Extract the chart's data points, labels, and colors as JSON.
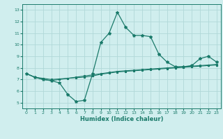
{
  "x": [
    0,
    1,
    2,
    3,
    4,
    5,
    6,
    7,
    8,
    9,
    10,
    11,
    12,
    13,
    14,
    15,
    16,
    17,
    18,
    19,
    20,
    21,
    22,
    23
  ],
  "line1": [
    7.5,
    7.2,
    7.0,
    6.9,
    6.7,
    5.7,
    5.1,
    5.2,
    7.5,
    10.2,
    11.0,
    12.8,
    11.5,
    10.8,
    10.8,
    10.7,
    9.2,
    8.5,
    8.1,
    8.1,
    8.2,
    8.8,
    9.0,
    8.5
  ],
  "line2": [
    7.5,
    7.2,
    7.0,
    6.9,
    7.0,
    7.1,
    7.2,
    7.3,
    7.4,
    7.5,
    7.6,
    7.7,
    7.75,
    7.8,
    7.85,
    7.9,
    7.95,
    8.0,
    8.05,
    8.1,
    8.15,
    8.2,
    8.25,
    8.3
  ],
  "line3": [
    7.5,
    7.2,
    7.1,
    7.0,
    7.05,
    7.1,
    7.15,
    7.2,
    7.3,
    7.45,
    7.55,
    7.65,
    7.7,
    7.75,
    7.8,
    7.85,
    7.9,
    7.95,
    8.0,
    8.05,
    8.1,
    8.15,
    8.2,
    8.25
  ],
  "line_color": "#1a7a6a",
  "bg_color": "#d0eeee",
  "grid_color": "#b0d8d8",
  "xlabel": "Humidex (Indice chaleur)",
  "ylim": [
    4.5,
    13.5
  ],
  "xlim": [
    -0.5,
    23.5
  ],
  "yticks": [
    5,
    6,
    7,
    8,
    9,
    10,
    11,
    12,
    13
  ],
  "xticks": [
    0,
    1,
    2,
    3,
    4,
    5,
    6,
    7,
    8,
    9,
    10,
    11,
    12,
    13,
    14,
    15,
    16,
    17,
    18,
    19,
    20,
    21,
    22,
    23
  ],
  "xtick_labels": [
    "0",
    "1",
    "2",
    "3",
    "4",
    "5",
    "6",
    "7",
    "8",
    "9",
    "10",
    "11",
    "12",
    "13",
    "14",
    "15",
    "16",
    "17",
    "18",
    "19",
    "20",
    "21",
    "22",
    "23"
  ]
}
